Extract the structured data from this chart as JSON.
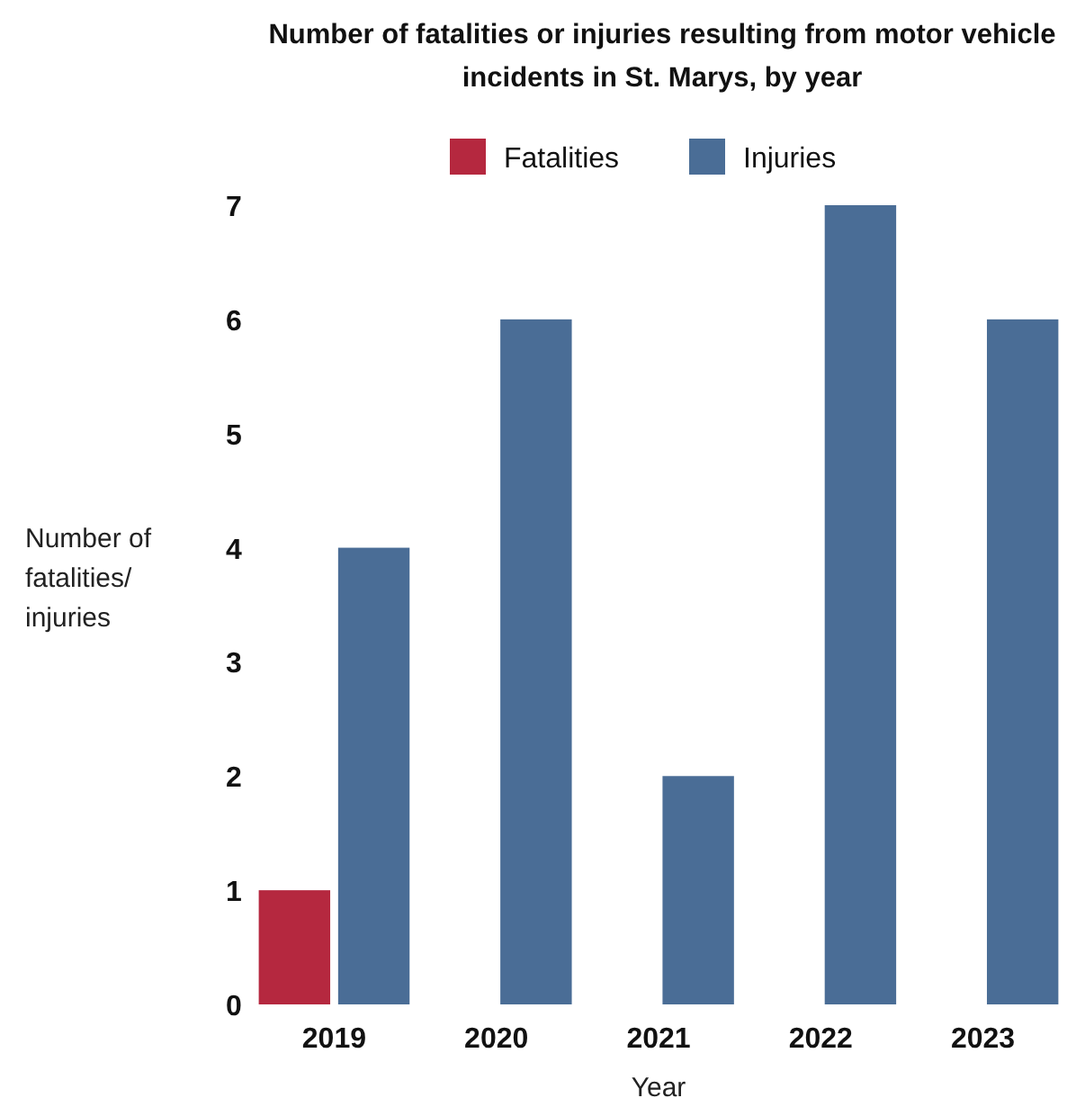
{
  "chart_data": {
    "type": "bar",
    "title": "Number of fatalities or injuries resulting from motor vehicle incidents in St. Marys, by year",
    "xlabel": "Year",
    "ylabel": "Number of fatalities/ injuries",
    "categories": [
      "2019",
      "2020",
      "2021",
      "2022",
      "2023"
    ],
    "series": [
      {
        "name": "Fatalities",
        "color": "#b5283f",
        "values": [
          1,
          0,
          0,
          0,
          0
        ]
      },
      {
        "name": "Injuries",
        "color": "#4a6d96",
        "values": [
          4,
          6,
          2,
          7,
          6
        ]
      }
    ],
    "ylim": [
      0,
      7
    ],
    "yticks": [
      0,
      1,
      2,
      3,
      4,
      5,
      6,
      7
    ],
    "grid": false,
    "legend": "top"
  }
}
